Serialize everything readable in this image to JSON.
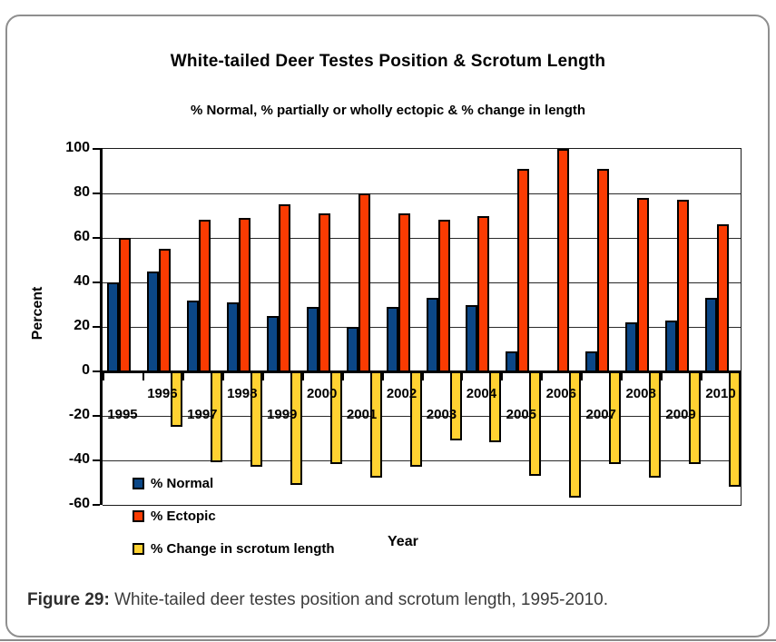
{
  "figure": {
    "caption_label": "Figure 29:",
    "caption_text": " White-tailed deer testes position and scrotum length, 1995-2010."
  },
  "chart_data": {
    "type": "bar",
    "title": "White-tailed Deer Testes Position & Scrotum Length",
    "subtitle": "% Normal, % partially or wholly ectopic & % change in length",
    "xlabel": "Year",
    "ylabel": "Percent",
    "ylim": [
      -60,
      100
    ],
    "yticks": [
      100,
      80,
      60,
      40,
      20,
      0,
      -20,
      -40,
      -60
    ],
    "grid": true,
    "legend_position": "bottom-left",
    "categories": [
      1995,
      1996,
      1997,
      1998,
      1999,
      2000,
      2001,
      2002,
      2003,
      2004,
      2005,
      2006,
      2007,
      2008,
      2009,
      2010
    ],
    "series": [
      {
        "name": "% Normal",
        "color": "#0b4787",
        "values": [
          40,
          45,
          32,
          31,
          25,
          29,
          20,
          29,
          33,
          30,
          9,
          0,
          9,
          22,
          23,
          33
        ]
      },
      {
        "name": "% Ectopic",
        "color": "#fb3b02",
        "values": [
          60,
          55,
          68,
          69,
          75,
          71,
          80,
          71,
          68,
          70,
          91,
          100,
          91,
          78,
          77,
          66
        ]
      },
      {
        "name": "% Change in scrotum length",
        "color": "#ffd232",
        "values": [
          null,
          -24,
          -40,
          -42,
          -50,
          -41,
          -47,
          -42,
          -30,
          -31,
          -46,
          -56,
          -41,
          -47,
          -41,
          -51
        ]
      }
    ]
  }
}
